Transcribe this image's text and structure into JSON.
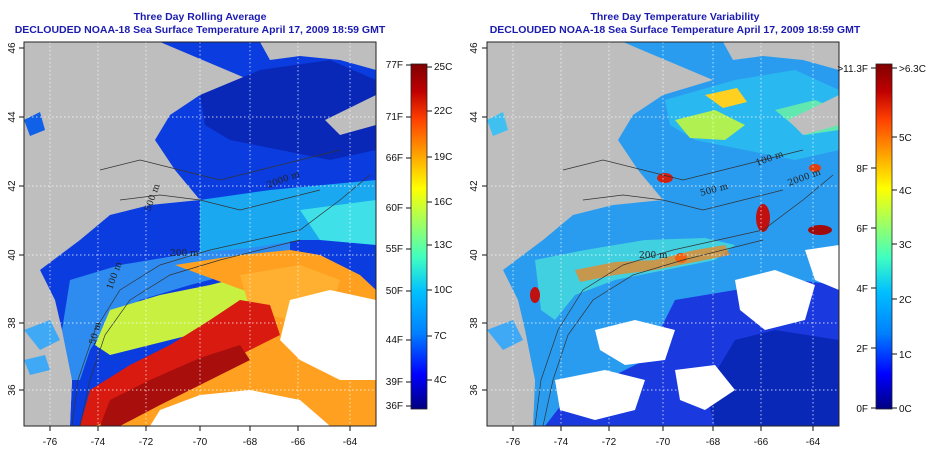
{
  "panels": [
    {
      "id": "left",
      "title_line1": "Three Day Rolling Average",
      "title_line2": "DECLOUDED NOAA-18 Sea Surface Temperature April 17, 2009 18:59 GMT",
      "x_ticks": [
        "-76",
        "-74",
        "-72",
        "-70",
        "-68",
        "-66",
        "-64"
      ],
      "y_ticks": [
        "36",
        "38",
        "40",
        "42",
        "44",
        "46"
      ],
      "contour_labels": [
        "2000 m",
        "500 m",
        "200 m",
        "50 m",
        "100 m"
      ],
      "colorbar": {
        "colors": [
          "#000080",
          "#0000ff",
          "#0080ff",
          "#00c0ff",
          "#40ffc0",
          "#a0ff60",
          "#ffff00",
          "#ffa000",
          "#ff4000",
          "#c00000",
          "#800000"
        ],
        "left_labels": [
          "77F",
          "71F",
          "66F",
          "60F",
          "55F",
          "50F",
          "44F",
          "39F",
          "36F"
        ],
        "right_labels": [
          "25C",
          "22C",
          "19C",
          "16C",
          "13C",
          "10C",
          "7C",
          "4C"
        ]
      }
    },
    {
      "id": "right",
      "title_line1": "Three Day Temperature Variability",
      "title_line2": "DECLOUDED NOAA-18 Sea Surface Temperature April 17, 2009 18:59 GMT",
      "x_ticks": [
        "-76",
        "-74",
        "-72",
        "-70",
        "-68",
        "-66",
        "-64"
      ],
      "y_ticks": [
        "36",
        "38",
        "40",
        "42",
        "44",
        "46"
      ],
      "contour_labels": [
        "100 m",
        "2000 m",
        "500 m",
        "200 m"
      ],
      "colorbar": {
        "colors": [
          "#000080",
          "#0000ff",
          "#0080ff",
          "#00c0ff",
          "#40ffc0",
          "#a0ff60",
          "#ffff00",
          "#ffa000",
          "#ff4000",
          "#c00000",
          "#800000"
        ],
        "left_labels": [
          ">11.3F",
          "8F",
          "6F",
          "4F",
          "2F",
          "0F"
        ],
        "right_labels": [
          ">6.3C",
          "5C",
          "4C",
          "3C",
          "2C",
          "1C",
          "0C"
        ]
      }
    }
  ]
}
